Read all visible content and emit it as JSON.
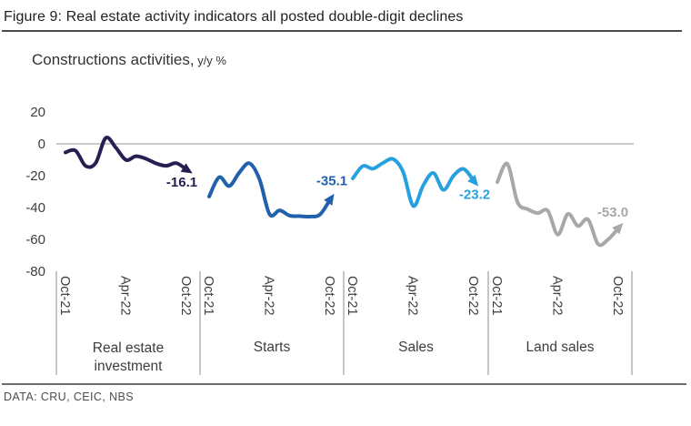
{
  "figure": {
    "title": "Figure 9: Real estate activity indicators all posted double-digit declines",
    "subtitle": "Constructions activities,",
    "subtitle_unit": " y/y %",
    "source": "DATA: CRU, CEIC, NBS"
  },
  "colors": {
    "real_estate_investment": "#252051",
    "starts": "#2161AC",
    "sales": "#27A0DF",
    "land_sales": "#A8A8A8",
    "zero_line": "#ABABAB",
    "separator": "#8c8c8c",
    "axis_text": "#3d3d3d"
  },
  "chart_data": {
    "type": "line",
    "title": "Constructions activities, y/y %",
    "ylabel": "y/y %",
    "ylim": [
      -80,
      20
    ],
    "yticks": [
      20,
      0,
      -20,
      -40,
      -60,
      -80
    ],
    "grid": "zero-line only",
    "legend": "none (category labels under each panel)",
    "x_tick_labels": [
      "Oct-21",
      "Apr-22",
      "Oct-22"
    ],
    "categories": [
      "Oct-21",
      "Nov-21",
      "Dec-21",
      "Jan-22",
      "Feb-22",
      "Mar-22",
      "Apr-22",
      "May-22",
      "Jun-22",
      "Jul-22",
      "Aug-22",
      "Sep-22",
      "Oct-22"
    ],
    "panels": [
      {
        "name": "Real estate investment",
        "name_lines": [
          "Real estate",
          "investment"
        ],
        "color": "#252051",
        "end_label": "-16.1",
        "values": [
          -5.4,
          -4.3,
          -13.9,
          -12.0,
          3.7,
          -2.4,
          -10.1,
          -7.8,
          -9.4,
          -12.3,
          -13.8,
          -12.1,
          -16.1
        ]
      },
      {
        "name": "Starts",
        "name_lines": [
          "Starts"
        ],
        "color": "#2161AC",
        "end_label": "-35.1",
        "values": [
          -33.1,
          -21.0,
          -26.5,
          -18.0,
          -12.2,
          -22.3,
          -44.2,
          -41.8,
          -45.1,
          -45.4,
          -45.7,
          -44.4,
          -35.1
        ]
      },
      {
        "name": "Sales",
        "name_lines": [
          "Sales"
        ],
        "color": "#27A0DF",
        "end_label": "-23.2",
        "values": [
          -21.7,
          -14.0,
          -15.6,
          -12.0,
          -9.6,
          -17.7,
          -39.0,
          -26.0,
          -18.3,
          -28.9,
          -20.0,
          -15.8,
          -23.2
        ]
      },
      {
        "name": "Land sales",
        "name_lines": [
          "Land sales"
        ],
        "color": "#A8A8A8",
        "end_label": "-53.0",
        "values": [
          -24.0,
          -12.6,
          -36.6,
          -41.0,
          -43.5,
          -42.0,
          -57.0,
          -44.0,
          -51.5,
          -47.5,
          -63.0,
          -60.0,
          -53.0
        ]
      }
    ]
  }
}
